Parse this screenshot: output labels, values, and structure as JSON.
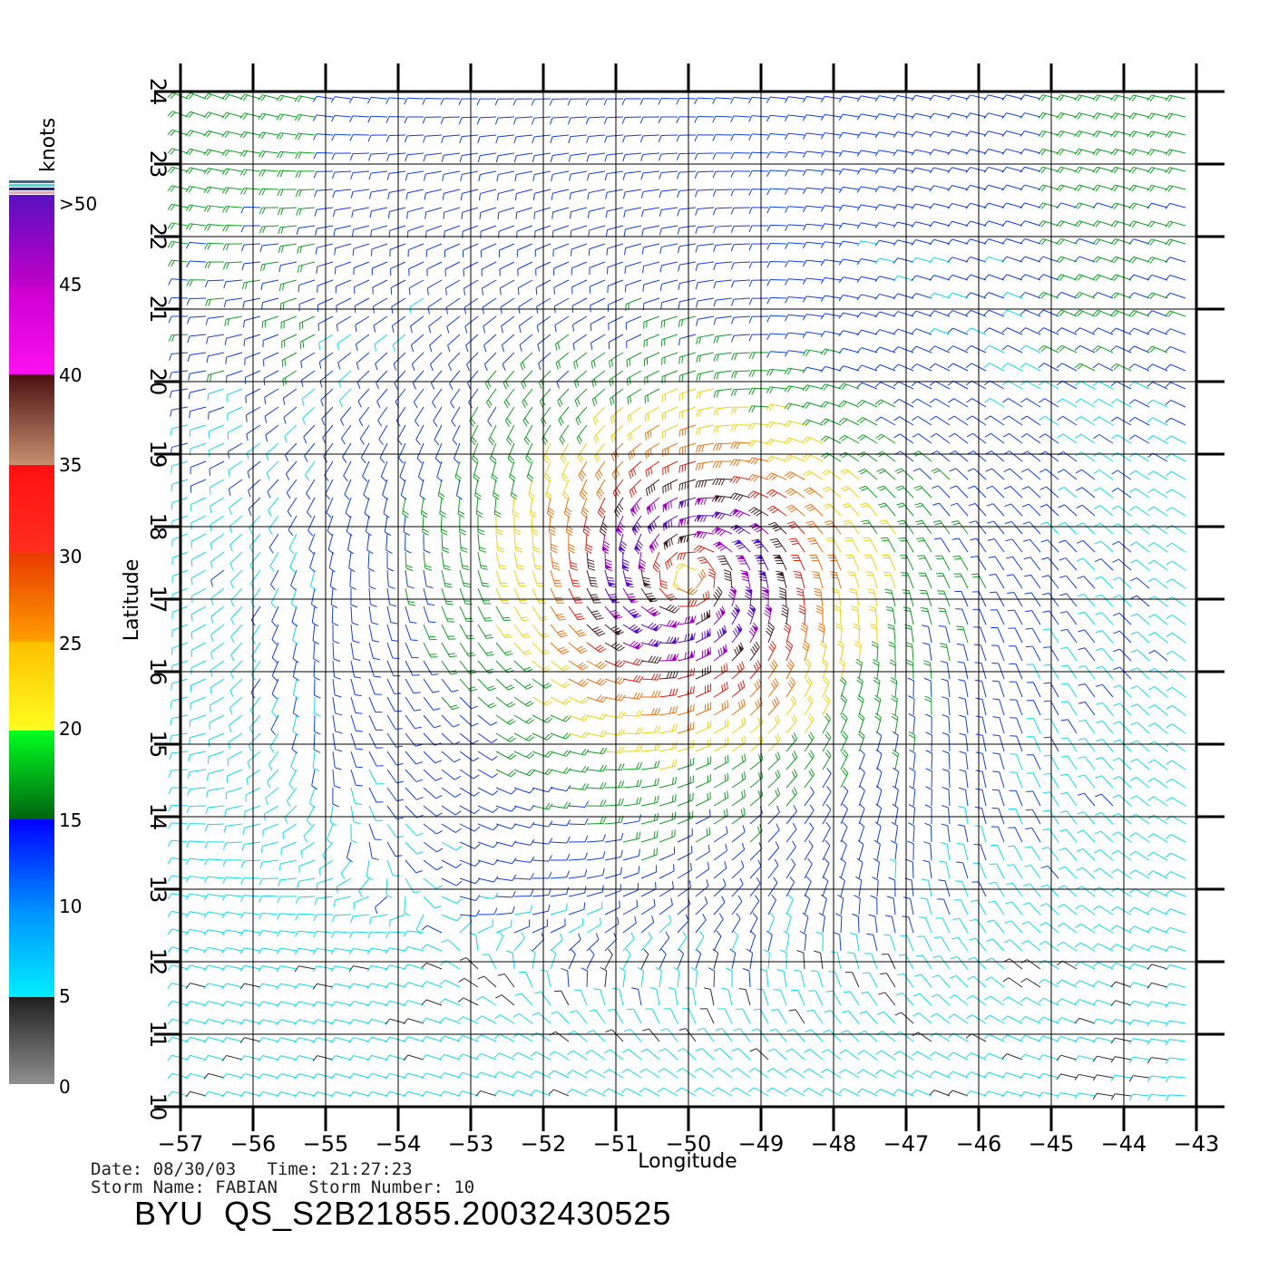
{
  "units_label": "knots",
  "colorbar": {
    "labels": [
      ">50",
      "45",
      "40",
      "35",
      "30",
      "25",
      "20",
      "15",
      "10",
      "5",
      "0"
    ],
    "colors": {
      "gt50": "#6a0fc8",
      "45": "#b000d0",
      "40": "#f000f0",
      "35_40": "#6b2e1a",
      "30_35": "#ff1010",
      "25_30": "#ff7a00",
      "20_25": "#ffd000",
      "15_20": "#10c810",
      "10_15": "#0030ff",
      "5_10": "#00e8f8",
      "0_5": "#404040"
    }
  },
  "axes": {
    "xlabel": "Longitude",
    "ylabel": "Latitude",
    "x_ticks": [
      "-57",
      "-56",
      "-55",
      "-54",
      "-53",
      "-52",
      "-51",
      "-50",
      "-49",
      "-48",
      "-47",
      "-46",
      "-45",
      "-44",
      "-43"
    ],
    "y_ticks": [
      "10",
      "11",
      "12",
      "13",
      "14",
      "15",
      "16",
      "17",
      "18",
      "19",
      "20",
      "21",
      "22",
      "23",
      "24"
    ],
    "x_range": [
      -57,
      -43
    ],
    "y_range": [
      10,
      24
    ]
  },
  "storm": {
    "center_lon": -50.0,
    "center_lat": 17.3,
    "max_wind_knots": 50
  },
  "meta": {
    "line1": "Date: 08/30/03   Time: 21:27:23",
    "line2": "Storm Name: FABIAN   Storm Number: 10",
    "product": "BYU  QS_S2B21855.20032430525"
  }
}
